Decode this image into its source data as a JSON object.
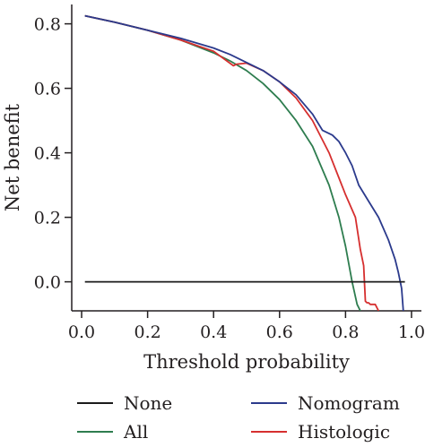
{
  "chart_data": {
    "type": "line",
    "xlabel": "Threshold probability",
    "ylabel": "Net benefit",
    "xlim": [
      -0.03,
      1.03
    ],
    "ylim": [
      -0.09,
      0.86
    ],
    "xticks": [
      0.0,
      0.2,
      0.4,
      0.6,
      0.8,
      1.0
    ],
    "xtick_labels": [
      "0.0",
      "0.2",
      "0.4",
      "0.6",
      "0.8",
      "1.0"
    ],
    "yticks": [
      0.0,
      0.2,
      0.4,
      0.6,
      0.8
    ],
    "ytick_labels": [
      "0.0",
      "0.2",
      "0.4",
      "0.6",
      "0.8"
    ],
    "grid": false,
    "legend_position": "bottom",
    "series": [
      {
        "name": "None",
        "color": "#1a1a1a",
        "x": [
          0.01,
          0.98
        ],
        "y": [
          0.0,
          0.0
        ]
      },
      {
        "name": "All",
        "color": "#2e7d4f",
        "x": [
          0.01,
          0.1,
          0.2,
          0.3,
          0.4,
          0.45,
          0.5,
          0.55,
          0.6,
          0.65,
          0.7,
          0.75,
          0.78,
          0.8,
          0.82,
          0.835,
          0.845
        ],
        "y": [
          0.825,
          0.805,
          0.78,
          0.75,
          0.71,
          0.685,
          0.655,
          0.615,
          0.565,
          0.5,
          0.42,
          0.3,
          0.2,
          0.11,
          0.0,
          -0.07,
          -0.09
        ]
      },
      {
        "name": "Nomogram",
        "color": "#2b3a8c",
        "x": [
          0.01,
          0.1,
          0.2,
          0.3,
          0.4,
          0.45,
          0.5,
          0.55,
          0.6,
          0.65,
          0.7,
          0.73,
          0.76,
          0.78,
          0.8,
          0.82,
          0.84,
          0.87,
          0.9,
          0.93,
          0.95,
          0.96,
          0.97,
          0.975
        ],
        "y": [
          0.825,
          0.805,
          0.78,
          0.755,
          0.725,
          0.705,
          0.68,
          0.655,
          0.62,
          0.58,
          0.52,
          0.47,
          0.455,
          0.435,
          0.4,
          0.36,
          0.3,
          0.25,
          0.2,
          0.13,
          0.07,
          0.03,
          -0.02,
          -0.09
        ]
      },
      {
        "name": "Histologic",
        "color": "#d62f2f",
        "x": [
          0.01,
          0.1,
          0.2,
          0.3,
          0.4,
          0.46,
          0.47,
          0.5,
          0.55,
          0.6,
          0.65,
          0.7,
          0.75,
          0.8,
          0.83,
          0.845,
          0.855,
          0.86,
          0.865,
          0.87,
          0.875,
          0.89,
          0.9
        ],
        "y": [
          0.825,
          0.805,
          0.78,
          0.75,
          0.715,
          0.67,
          0.675,
          0.678,
          0.655,
          0.62,
          0.57,
          0.5,
          0.4,
          0.27,
          0.2,
          0.1,
          0.05,
          -0.06,
          -0.065,
          -0.065,
          -0.07,
          -0.07,
          -0.09
        ]
      }
    ]
  },
  "legend": {
    "none": "None",
    "nomogram": "Nomogram",
    "all": "All",
    "histologic": "Histologic"
  }
}
